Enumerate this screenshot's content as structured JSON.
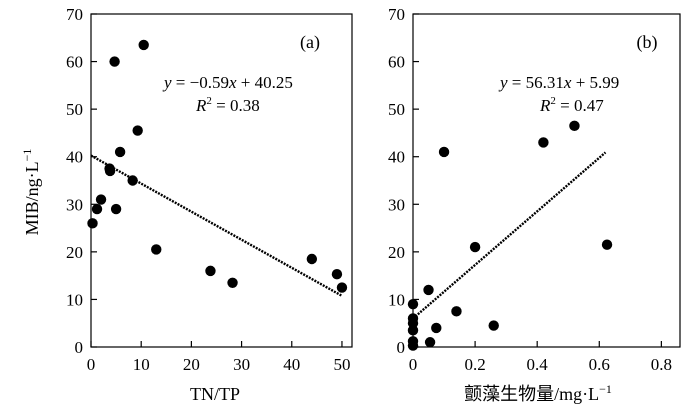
{
  "chart_data": [
    {
      "type": "scatter",
      "panel_label": "(a)",
      "xlabel": "TN/TP",
      "ylabel": "MIB/ng·L",
      "ylabel_superscript": "−1",
      "xlim": [
        0,
        52
      ],
      "ylim": [
        0,
        70
      ],
      "xticks": [
        0,
        10,
        20,
        30,
        40,
        50
      ],
      "xtick_labels": [
        "0",
        "10",
        "20",
        "30",
        "40",
        "50"
      ],
      "yticks": [
        0,
        10,
        20,
        30,
        40,
        50,
        60,
        70
      ],
      "ytick_labels": [
        "0",
        "10",
        "20",
        "30",
        "40",
        "50",
        "60",
        "70"
      ],
      "grid": false,
      "equation": {
        "y": "y",
        "eq_part": " = −0.59",
        "x": "x",
        "rest": " + 40.25",
        "r": "R",
        "r_sup": "2",
        "r_rest": " = 0.38"
      },
      "fit": {
        "slope": -0.59,
        "intercept": 40.25,
        "x_range": [
          0,
          50
        ]
      },
      "points": [
        {
          "x": 0.3,
          "y": 26
        },
        {
          "x": 1.2,
          "y": 29
        },
        {
          "x": 2.0,
          "y": 31
        },
        {
          "x": 3.7,
          "y": 37.5
        },
        {
          "x": 3.8,
          "y": 37
        },
        {
          "x": 4.7,
          "y": 60
        },
        {
          "x": 5.0,
          "y": 29
        },
        {
          "x": 5.8,
          "y": 41
        },
        {
          "x": 8.3,
          "y": 35
        },
        {
          "x": 9.3,
          "y": 45.5
        },
        {
          "x": 10.5,
          "y": 63.5
        },
        {
          "x": 13.0,
          "y": 20.5
        },
        {
          "x": 23.8,
          "y": 16
        },
        {
          "x": 28.2,
          "y": 13.5
        },
        {
          "x": 44.0,
          "y": 18.5
        },
        {
          "x": 49.0,
          "y": 15.3
        },
        {
          "x": 50.0,
          "y": 12.5
        }
      ]
    },
    {
      "type": "scatter",
      "panel_label": "(b)",
      "xlabel": "颤藻生物量/mg·L",
      "xlabel_superscript": "−1",
      "ylabel": "",
      "xlim": [
        0,
        0.86
      ],
      "ylim": [
        0,
        70
      ],
      "xticks": [
        0,
        0.2,
        0.4,
        0.6,
        0.8
      ],
      "xtick_labels": [
        "0",
        "0.2",
        "0.4",
        "0.6",
        "0.8"
      ],
      "yticks": [
        0,
        10,
        20,
        30,
        40,
        50,
        60,
        70
      ],
      "ytick_labels": [
        "0",
        "10",
        "20",
        "30",
        "40",
        "50",
        "60",
        "70"
      ],
      "grid": false,
      "equation": {
        "y": "y",
        "eq_part": " = 56.31",
        "x": "x",
        "rest": " + 5.99",
        "r": "R",
        "r_sup": "2",
        "r_rest": " = 0.47"
      },
      "fit": {
        "slope": 56.31,
        "intercept": 5.99,
        "x_range": [
          0,
          0.62
        ]
      },
      "points": [
        {
          "x": 0.0,
          "y": 0.3
        },
        {
          "x": 0.0,
          "y": 1.2
        },
        {
          "x": 0.0,
          "y": 3.5
        },
        {
          "x": 0.0,
          "y": 5
        },
        {
          "x": 0.0,
          "y": 6
        },
        {
          "x": 0.0,
          "y": 9
        },
        {
          "x": 0.05,
          "y": 12
        },
        {
          "x": 0.055,
          "y": 1
        },
        {
          "x": 0.075,
          "y": 4
        },
        {
          "x": 0.1,
          "y": 41
        },
        {
          "x": 0.14,
          "y": 7.5
        },
        {
          "x": 0.2,
          "y": 21
        },
        {
          "x": 0.26,
          "y": 4.5
        },
        {
          "x": 0.42,
          "y": 43
        },
        {
          "x": 0.52,
          "y": 46.5
        },
        {
          "x": 0.625,
          "y": 21.5
        }
      ]
    }
  ]
}
